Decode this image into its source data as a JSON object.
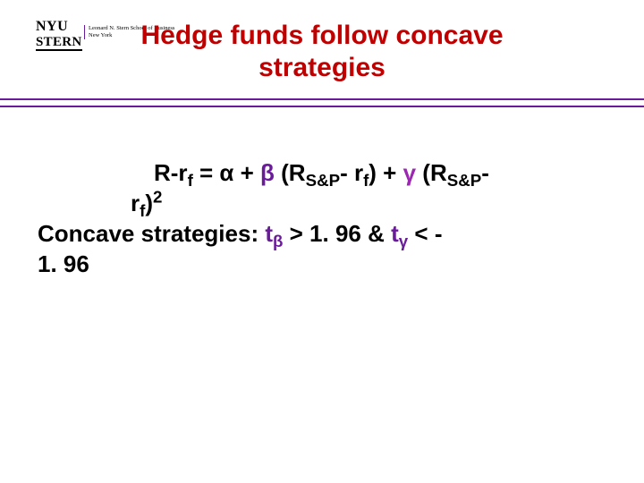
{
  "logo": {
    "line1": "NYU",
    "line2": "STERN",
    "tag1": "Leonard N. Stern School of Business",
    "tag2": "New York"
  },
  "title": {
    "line1": "Hedge funds follow concave",
    "line2": "strategies"
  },
  "equation": {
    "lead": "R-r",
    "f1": "f",
    "eq_alpha": " = α + ",
    "beta": "β",
    "open1": " (R",
    "sp1": "S&P",
    "mid1": "- r",
    "f2": "f",
    "close1": ") + ",
    "gamma": "γ",
    "open2": " (R",
    "sp2": "S&P",
    "dash": "-",
    "r2": "r",
    "f3": "f",
    "paren2": ")",
    "sq": "2"
  },
  "concave": {
    "label": "Concave strategies:  ",
    "t1": "t",
    "b": "β",
    "gt": " > 1. 96   &   ",
    "t2": "t",
    "g": "γ",
    "lt": " < -",
    "val": "1. 96"
  },
  "style": {
    "title_color": "#c00000",
    "rule_color": "#6a1b9a",
    "beta_color": "#6a1b9a",
    "gamma_color": "#9c27b0",
    "text_color": "#000000",
    "background": "#ffffff"
  }
}
